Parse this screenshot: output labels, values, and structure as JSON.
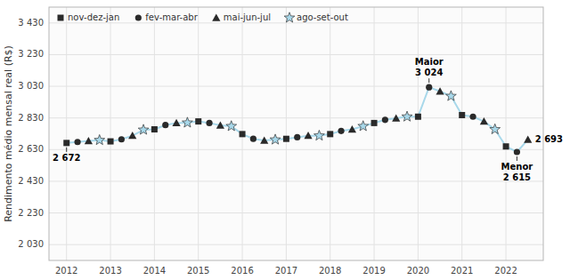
{
  "chart_data": {
    "type": "line",
    "ylabel": "Rendimento médio mensal real (R$)",
    "xlim": [
      2011.6,
      2022.85
    ],
    "xticks": [
      2012,
      2013,
      2014,
      2015,
      2016,
      2017,
      2018,
      2019,
      2020,
      2021,
      2022
    ],
    "ylim": [
      1930,
      3530
    ],
    "yticks": [
      {
        "value": 2030,
        "label": "2 030"
      },
      {
        "value": 2230,
        "label": "2 230"
      },
      {
        "value": 2430,
        "label": "2 430"
      },
      {
        "value": 2630,
        "label": "2 630"
      },
      {
        "value": 2830,
        "label": "2 830"
      },
      {
        "value": 3030,
        "label": "3 030"
      },
      {
        "value": 3230,
        "label": "3 230"
      },
      {
        "value": 3430,
        "label": "3 430"
      }
    ],
    "grid": true,
    "legend": "upper left",
    "series": [
      {
        "type": "line",
        "color": "#a8d8ea",
        "x": [
          2012.0,
          2012.25,
          2012.5,
          2012.75,
          2013.0,
          2013.25,
          2013.5,
          2013.75,
          2014.0,
          2014.25,
          2014.5,
          2014.75,
          2015.0,
          2015.25,
          2015.5,
          2015.75,
          2016.0,
          2016.25,
          2016.5,
          2016.75,
          2017.0,
          2017.25,
          2017.5,
          2017.75,
          2018.0,
          2018.25,
          2018.5,
          2018.75,
          2019.0,
          2019.25,
          2019.5,
          2019.75,
          2020.0,
          2020.25,
          2020.5,
          2020.75,
          2021.0,
          2021.25,
          2021.5,
          2021.75,
          2022.0,
          2022.25,
          2022.5
        ],
        "values": [
          2672,
          2678,
          2685,
          2690,
          2682,
          2695,
          2718,
          2755,
          2758,
          2785,
          2798,
          2800,
          2808,
          2798,
          2783,
          2778,
          2728,
          2698,
          2688,
          2693,
          2698,
          2708,
          2718,
          2718,
          2728,
          2748,
          2758,
          2778,
          2798,
          2818,
          2828,
          2838,
          2838,
          3024,
          2998,
          2968,
          2848,
          2838,
          2808,
          2758,
          2650,
          2615,
          2693
        ]
      },
      {
        "name": "nov-dez-jan",
        "type": "scatter",
        "marker": "square",
        "color": "#2a2a2a",
        "x": [
          2012.0,
          2013.0,
          2014.0,
          2015.0,
          2016.0,
          2017.0,
          2018.0,
          2019.0,
          2020.0,
          2021.0,
          2022.0
        ],
        "values": [
          2672,
          2682,
          2758,
          2808,
          2728,
          2698,
          2728,
          2798,
          2838,
          2848,
          2650
        ]
      },
      {
        "name": "fev-mar-abr",
        "type": "scatter",
        "marker": "circle",
        "color": "#2a2a2a",
        "x": [
          2012.25,
          2013.25,
          2014.25,
          2015.25,
          2016.25,
          2017.25,
          2018.25,
          2019.25,
          2020.25,
          2021.25,
          2022.25
        ],
        "values": [
          2678,
          2695,
          2785,
          2798,
          2698,
          2708,
          2748,
          2818,
          3024,
          2838,
          2615
        ]
      },
      {
        "name": "mai-jun-jul",
        "type": "scatter",
        "marker": "triangle",
        "color": "#2a2a2a",
        "x": [
          2012.5,
          2013.5,
          2014.5,
          2015.5,
          2016.5,
          2017.5,
          2018.5,
          2019.5,
          2020.5,
          2021.5,
          2022.5
        ],
        "values": [
          2685,
          2718,
          2798,
          2783,
          2688,
          2718,
          2758,
          2828,
          2998,
          2808,
          2693
        ]
      },
      {
        "name": "ago-set-out",
        "type": "scatter",
        "marker": "star",
        "color": "#a8d8ea",
        "x": [
          2012.75,
          2013.75,
          2014.75,
          2015.75,
          2016.75,
          2017.75,
          2018.75,
          2019.75,
          2020.75,
          2021.75
        ],
        "values": [
          2690,
          2755,
          2800,
          2778,
          2693,
          2718,
          2778,
          2838,
          2968,
          2758
        ]
      }
    ],
    "annotations": [
      {
        "text": "2 672",
        "x": 2012.0,
        "y": 2672
      },
      {
        "text": "Maior",
        "x": 2020.25,
        "y": 3024
      },
      {
        "text": "3 024",
        "x": 2020.25,
        "y": 3024
      },
      {
        "text": "Menor",
        "x": 2022.25,
        "y": 2615
      },
      {
        "text": "2 615",
        "x": 2022.25,
        "y": 2615
      },
      {
        "text": "2 693",
        "x": 2022.5,
        "y": 2693
      }
    ]
  }
}
